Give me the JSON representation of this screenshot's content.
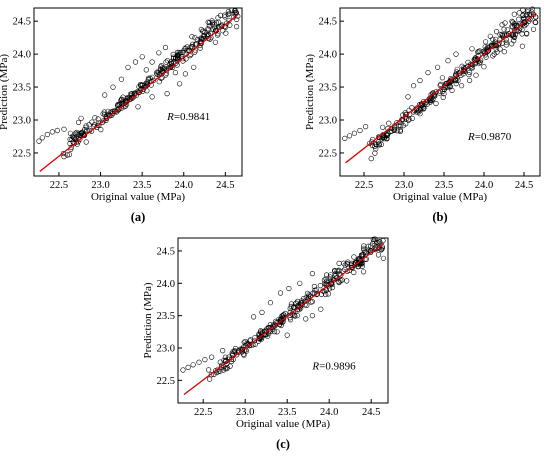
{
  "chart_data": [
    {
      "type": "scatter",
      "panel_label": "(a)",
      "xlabel": "Original value (MPa)",
      "ylabel": "Prediction (MPa)",
      "annotation": {
        "italic": "R",
        "text": "=0.9841"
      },
      "xlim": [
        22.2,
        24.7
      ],
      "ylim": [
        22.15,
        24.7
      ],
      "xticks": [
        22.5,
        23.0,
        23.5,
        24.0,
        24.5
      ],
      "yticks": [
        22.5,
        23.0,
        23.5,
        24.0,
        24.5
      ],
      "xtick_labels": [
        "22.5",
        "23.0",
        "23.5",
        "24.0",
        "24.5"
      ],
      "ytick_labels": [
        "22.5",
        "23.0",
        "23.5",
        "24.0",
        "24.5"
      ],
      "fit_line": {
        "x": [
          22.27,
          24.65
        ],
        "y": [
          22.22,
          24.6
        ]
      },
      "grid": false,
      "colors": {
        "line": "#dd0000",
        "marker_edge": "#000000"
      },
      "seed": 11,
      "scatter": [
        [
          22.26,
          22.68
        ],
        [
          22.3,
          22.73
        ],
        [
          22.36,
          22.78
        ],
        [
          22.42,
          22.82
        ],
        [
          22.48,
          22.84
        ],
        [
          22.56,
          22.86
        ],
        [
          23.15,
          23.5
        ],
        [
          23.25,
          23.62
        ],
        [
          23.33,
          23.8
        ],
        [
          23.42,
          23.88
        ],
        [
          23.5,
          23.96
        ],
        [
          23.62,
          23.88
        ],
        [
          23.7,
          24.02
        ],
        [
          23.55,
          23.76
        ],
        [
          23.28,
          23.2
        ],
        [
          23.45,
          23.2
        ],
        [
          23.62,
          23.35
        ],
        [
          23.8,
          23.4
        ],
        [
          23.95,
          23.55
        ],
        [
          24.02,
          23.7
        ],
        [
          24.12,
          23.8
        ],
        [
          24.38,
          24.18
        ],
        [
          24.55,
          24.62
        ],
        [
          24.62,
          24.66
        ],
        [
          24.35,
          24.48
        ],
        [
          22.7,
          22.8
        ],
        [
          23.05,
          23.38
        ],
        [
          23.9,
          23.72
        ],
        [
          23.78,
          24.1
        ]
      ]
    },
    {
      "type": "scatter",
      "panel_label": "(b)",
      "xlabel": "Original value (MPa)",
      "ylabel": "Prediction (MPa)",
      "annotation": {
        "italic": "R",
        "text": "=0.9870"
      },
      "xlim": [
        22.2,
        24.7
      ],
      "ylim": [
        22.15,
        24.7
      ],
      "xticks": [
        22.5,
        23.0,
        23.5,
        24.0,
        24.5
      ],
      "yticks": [
        22.5,
        23.0,
        23.5,
        24.0,
        24.5
      ],
      "xtick_labels": [
        "22.5",
        "23.0",
        "23.5",
        "24.0",
        "24.5"
      ],
      "ytick_labels": [
        "22.5",
        "23.0",
        "23.5",
        "24.0",
        "24.5"
      ],
      "fit_line": {
        "x": [
          22.27,
          24.65
        ],
        "y": [
          22.35,
          24.62
        ]
      },
      "grid": false,
      "colors": {
        "line": "#dd0000",
        "marker_edge": "#000000"
      },
      "seed": 23,
      "scatter": [
        [
          22.26,
          22.72
        ],
        [
          22.32,
          22.76
        ],
        [
          22.38,
          22.8
        ],
        [
          22.45,
          22.84
        ],
        [
          22.52,
          22.9
        ],
        [
          23.12,
          23.52
        ],
        [
          23.2,
          23.6
        ],
        [
          23.3,
          23.72
        ],
        [
          23.42,
          23.8
        ],
        [
          23.55,
          23.9
        ],
        [
          23.65,
          24.0
        ],
        [
          23.48,
          23.64
        ],
        [
          23.6,
          23.45
        ],
        [
          23.72,
          23.52
        ],
        [
          23.82,
          23.6
        ],
        [
          23.9,
          23.68
        ],
        [
          23.25,
          23.18
        ],
        [
          23.4,
          23.25
        ],
        [
          24.2,
          24.3
        ],
        [
          24.35,
          24.42
        ],
        [
          24.48,
          24.12
        ],
        [
          24.6,
          24.64
        ],
        [
          24.62,
          24.6
        ],
        [
          23.05,
          23.35
        ],
        [
          23.85,
          24.08
        ]
      ]
    },
    {
      "type": "scatter",
      "panel_label": "(c)",
      "xlabel": "Original value (MPa)",
      "ylabel": "Prediction (MPa)",
      "annotation": {
        "italic": "R",
        "text": "=0.9896"
      },
      "xlim": [
        22.2,
        24.7
      ],
      "ylim": [
        22.15,
        24.7
      ],
      "xticks": [
        22.5,
        23.0,
        23.5,
        24.0,
        24.5
      ],
      "yticks": [
        22.5,
        23.0,
        23.5,
        24.0,
        24.5
      ],
      "xtick_labels": [
        "22.5",
        "23.0",
        "23.5",
        "24.0",
        "24.5"
      ],
      "ytick_labels": [
        "22.5",
        "23.0",
        "23.5",
        "24.0",
        "24.5"
      ],
      "fit_line": {
        "x": [
          22.27,
          24.65
        ],
        "y": [
          22.28,
          24.62
        ]
      },
      "grid": false,
      "colors": {
        "line": "#dd0000",
        "marker_edge": "#000000"
      },
      "seed": 37,
      "scatter": [
        [
          22.26,
          22.66
        ],
        [
          22.32,
          22.7
        ],
        [
          22.38,
          22.74
        ],
        [
          22.45,
          22.78
        ],
        [
          22.52,
          22.82
        ],
        [
          22.6,
          22.86
        ],
        [
          22.66,
          22.62
        ],
        [
          22.7,
          22.64
        ],
        [
          22.74,
          22.66
        ],
        [
          22.78,
          22.68
        ],
        [
          22.82,
          22.72
        ],
        [
          23.1,
          23.48
        ],
        [
          23.2,
          23.55
        ],
        [
          23.3,
          23.7
        ],
        [
          23.42,
          23.85
        ],
        [
          23.52,
          23.92
        ],
        [
          23.65,
          24.0
        ],
        [
          23.8,
          24.15
        ],
        [
          23.55,
          23.68
        ],
        [
          23.62,
          23.5
        ],
        [
          23.72,
          23.45
        ],
        [
          23.8,
          23.5
        ],
        [
          23.9,
          23.6
        ],
        [
          23.5,
          23.2
        ],
        [
          23.38,
          23.25
        ],
        [
          24.38,
          24.35
        ],
        [
          24.5,
          24.5
        ],
        [
          24.6,
          24.64
        ],
        [
          24.64,
          24.66
        ],
        [
          23.0,
          23.1
        ]
      ]
    }
  ]
}
